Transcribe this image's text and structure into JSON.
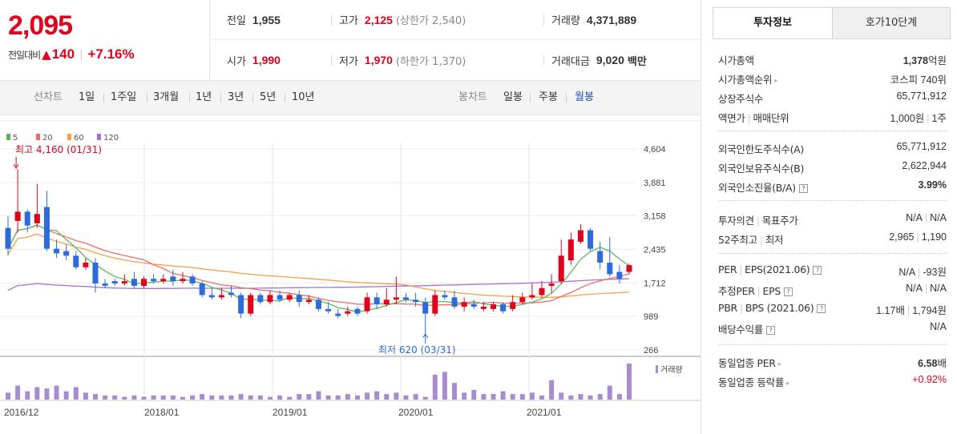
{
  "header": {
    "price": "2,095",
    "change_label": "전일대비",
    "change_amount": "140",
    "change_pct": "+7.16%",
    "prev_close_label": "전일",
    "prev_close": "1,955",
    "high_label": "고가",
    "high": "2,125",
    "upper_limit": "(상한가 2,540)",
    "volume_label": "거래량",
    "volume": "4,371,889",
    "open_label": "시가",
    "open": "1,990",
    "low_label": "저가",
    "low": "1,970",
    "lower_limit": "(하한가 1,370)",
    "amount_label": "거래대금",
    "amount": "9,020",
    "amount_unit": "백만"
  },
  "toolbar": {
    "line_label": "선차트",
    "line_periods": [
      "1일",
      "1주일",
      "3개월",
      "1년",
      "3년",
      "5년",
      "10년"
    ],
    "candle_label": "봉차트",
    "candle_periods": [
      "일봉",
      "주봉",
      "월봉"
    ],
    "active_candle": "월봉"
  },
  "colors": {
    "up": "#e0001b",
    "down": "#2e6bd9",
    "ma5": "#5cb85c",
    "ma20": "#f06b6b",
    "ma60": "#f5a04a",
    "ma120": "#a56fd6",
    "volume": "#a98ccf"
  },
  "chart_data": {
    "type": "candlestick",
    "legend": [
      "5",
      "20",
      "60",
      "120"
    ],
    "y_ticks": [
      4604,
      3881,
      3158,
      2435,
      1712,
      989,
      266
    ],
    "x_labels": [
      "2016/12",
      "2018/01",
      "2019/01",
      "2020/01",
      "2021/01"
    ],
    "high_annotation": "최고 4,160 (01/31)",
    "low_annotation": "최저 620 (03/31)",
    "volume_label": "거래량",
    "candles": [
      [
        2900,
        2450,
        3150,
        2300
      ],
      [
        3050,
        3250,
        4160,
        2800
      ],
      [
        3250,
        2950,
        3300,
        2800
      ],
      [
        3000,
        3200,
        3850,
        2900
      ],
      [
        3350,
        2450,
        3700,
        2400
      ],
      [
        2450,
        2350,
        2650,
        2250
      ],
      [
        2400,
        2300,
        2550,
        2200
      ],
      [
        2300,
        2050,
        2400,
        2000
      ],
      [
        2050,
        2150,
        2250,
        2000
      ],
      [
        2150,
        1700,
        2250,
        1500
      ],
      [
        1700,
        1650,
        1800,
        1600
      ],
      [
        1750,
        1700,
        1800,
        1650
      ],
      [
        1700,
        1750,
        1900,
        1650
      ],
      [
        1800,
        1650,
        1950,
        1600
      ],
      [
        1650,
        1800,
        1850,
        1600
      ],
      [
        1800,
        1750,
        1900,
        1700
      ],
      [
        1750,
        1800,
        1900,
        1700
      ],
      [
        1850,
        1750,
        2000,
        1650
      ],
      [
        1750,
        1800,
        1950,
        1700
      ],
      [
        1850,
        1700,
        1900,
        1650
      ],
      [
        1700,
        1450,
        1750,
        1400
      ],
      [
        1450,
        1400,
        1600,
        1350
      ],
      [
        1400,
        1450,
        1600,
        1350
      ],
      [
        1500,
        1450,
        1650,
        1400
      ],
      [
        1450,
        1050,
        1500,
        950
      ],
      [
        1050,
        1450,
        1500,
        1000
      ],
      [
        1450,
        1300,
        1500,
        1250
      ],
      [
        1300,
        1450,
        1550,
        1250
      ],
      [
        1450,
        1350,
        1550,
        1300
      ],
      [
        1350,
        1450,
        1500,
        1300
      ],
      [
        1450,
        1300,
        1550,
        1200
      ],
      [
        1300,
        1350,
        1450,
        1250
      ],
      [
        1350,
        1150,
        1400,
        1100
      ],
      [
        1150,
        1100,
        1300,
        1050
      ],
      [
        1050,
        1000,
        1150,
        950
      ],
      [
        1050,
        1100,
        1200,
        1000
      ],
      [
        1150,
        1050,
        1200,
        1000
      ],
      [
        1100,
        1400,
        1500,
        1050
      ],
      [
        1400,
        1250,
        1500,
        1150
      ],
      [
        1250,
        1350,
        1600,
        1200
      ],
      [
        1350,
        1400,
        1850,
        1250
      ],
      [
        1400,
        1350,
        1500,
        1300
      ],
      [
        1350,
        1300,
        1500,
        1200
      ],
      [
        1300,
        1050,
        1400,
        620
      ],
      [
        1050,
        1450,
        1550,
        1000
      ],
      [
        1450,
        1400,
        1550,
        1350
      ],
      [
        1400,
        1200,
        1550,
        1150
      ],
      [
        1200,
        1300,
        1400,
        1100
      ],
      [
        1250,
        1200,
        1350,
        1150
      ],
      [
        1150,
        1200,
        1300,
        1100
      ],
      [
        1150,
        1250,
        1300,
        1100
      ],
      [
        1250,
        1100,
        1300,
        1050
      ],
      [
        1150,
        1300,
        1450,
        1100
      ],
      [
        1300,
        1400,
        1500,
        1250
      ],
      [
        1400,
        1450,
        1700,
        1350
      ],
      [
        1450,
        1600,
        1750,
        1400
      ],
      [
        1650,
        1700,
        1900,
        1500
      ],
      [
        1750,
        2300,
        2650,
        1700
      ],
      [
        2200,
        2650,
        2800,
        2100
      ],
      [
        2600,
        2850,
        2980,
        2550
      ],
      [
        2850,
        2450,
        2900,
        2400
      ],
      [
        2400,
        2150,
        2600,
        2000
      ],
      [
        2150,
        1900,
        2700,
        1850
      ],
      [
        1950,
        1800,
        2100,
        1700
      ],
      [
        1950,
        2095,
        2125,
        1900
      ]
    ]
  },
  "tabs": {
    "active": "투자정보",
    "inactive": "호가10단계"
  },
  "invest": {
    "market_cap_label": "시가총액",
    "market_cap": "1,378",
    "market_cap_unit": "억원",
    "rank_label": "시가총액순위",
    "rank": "코스피 740위",
    "shares_label": "상장주식수",
    "shares": "65,771,912",
    "par_label": "액면가",
    "par_label2": "매매단위",
    "par": "1,000원",
    "unit": "1주",
    "foreign_limit_label": "외국인한도주식수(A)",
    "foreign_limit": "65,771,912",
    "foreign_hold_label": "외국인보유주식수(B)",
    "foreign_hold": "2,622,944",
    "foreign_ratio_label": "외국인소진율(B/A)",
    "foreign_ratio": "3.99%",
    "opinion_label": "투자의견",
    "target_label": "목표주가",
    "opinion": "N/A",
    "target": "N/A",
    "w52_label": "52주최고",
    "w52_low_label": "최저",
    "w52_high": "2,965",
    "w52_low": "1,190",
    "per_label": "PER",
    "eps_label": "EPS(2021.06)",
    "per": "N/A",
    "eps": "-93원",
    "est_per_label": "추정PER",
    "est_eps_label": "EPS",
    "est_per": "N/A",
    "est_eps": "N/A",
    "pbr_label": "PBR",
    "bps_label": "BPS (2021.06)",
    "pbr": "1.17배",
    "bps": "1,794원",
    "div_label": "배당수익률",
    "div": "N/A",
    "sector_per_label": "동일업종 PER",
    "sector_per": "6.58",
    "sector_per_unit": "배",
    "sector_chg_label": "동일업종 등락률",
    "sector_chg": "+0.92%"
  }
}
